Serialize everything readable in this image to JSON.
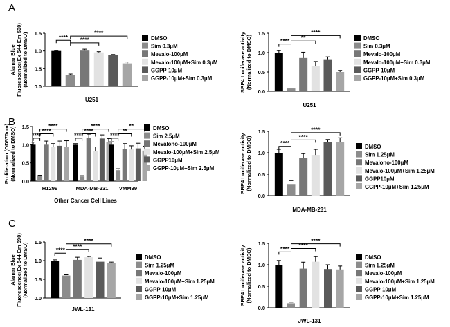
{
  "panel_labels": [
    "A",
    "B",
    "C"
  ],
  "group_colors": [
    "#000000",
    "#8c8c8c",
    "#777777",
    "#e2e2e2",
    "#5a5a5a",
    "#a6a6a6"
  ],
  "chart_data": [
    {
      "id": "A-left",
      "type": "bar",
      "ylabel": [
        "Alamar Blue",
        "Fluorescence(Ex 544 Em 590)",
        "(Normalized to DMSO)"
      ],
      "xlabel": "U251",
      "ylim": [
        0,
        1.5
      ],
      "yticks": [
        "0.0",
        "0.5",
        "1.0",
        "1.5"
      ],
      "legend": [
        "DMSO",
        "Sim 0.3μM",
        "Mevalo-100μM",
        "Mevalo-100μM+Sim 0.3μM",
        "GGPP-10μM",
        "GGPP-10μM+Sim 0.3μM"
      ],
      "groups": [
        {
          "label": "U251",
          "values": [
            1.0,
            0.33,
            1.01,
            0.96,
            0.89,
            0.65
          ],
          "errors": [
            0.01,
            0.02,
            0.04,
            0.02,
            0.01,
            0.04
          ]
        }
      ],
      "brackets": [
        {
          "from": 0,
          "to": 1,
          "label": "****",
          "y": 1.3
        },
        {
          "from": 1,
          "to": 3,
          "label": "****",
          "y": 1.23
        },
        {
          "from": 1,
          "to": 5,
          "label": "****",
          "y": 1.42
        }
      ]
    },
    {
      "id": "A-right",
      "type": "bar",
      "ylabel": [
        "SBE4 Luciferase activity",
        "(Normalized to DMSO)"
      ],
      "xlabel": "U251",
      "ylim": [
        0,
        1.5
      ],
      "yticks": [
        "0.0",
        "0.5",
        "1.0",
        "1.5"
      ],
      "legend": [
        "DMSO",
        "Sim 0.3μM",
        "Mevalo-100μM",
        "Mevalo-100μM+Sim 0.3μM",
        "GGPP-10μM",
        "GGPP-10μM+Sim 0.3μM"
      ],
      "groups": [
        {
          "label": "U251",
          "values": [
            1.0,
            0.07,
            0.86,
            0.65,
            0.81,
            0.5
          ],
          "errors": [
            0.05,
            0.01,
            0.15,
            0.12,
            0.08,
            0.04
          ]
        }
      ],
      "brackets": [
        {
          "from": 0,
          "to": 1,
          "label": "****",
          "y": 1.22
        },
        {
          "from": 1,
          "to": 3,
          "label": "**",
          "y": 1.3
        },
        {
          "from": 1,
          "to": 5,
          "label": "****",
          "y": 1.44
        }
      ]
    },
    {
      "id": "B-left",
      "type": "bar",
      "ylabel": [
        "Proliferation (OD570nm)",
        "(Normalized to DMSO)"
      ],
      "xlabel": "Other Cancer Cell Lines",
      "ylim": [
        0,
        1.5
      ],
      "yticks": [
        "0.0",
        "0.5",
        "1.0",
        "1.5"
      ],
      "legend": [
        "DMSO",
        "Sim 2.5μM",
        "Mevalono-100μM",
        "Mevalo-100μM+Sim 2.5μM",
        "GGPP10μM",
        "GGPP-10μM+Sim 2.5μM"
      ],
      "groups": [
        {
          "label": "H1299",
          "values": [
            1.0,
            0.14,
            1.0,
            0.93,
            0.97,
            0.93
          ],
          "errors": [
            0.07,
            0.02,
            0.1,
            0.1,
            0.13,
            0.18
          ]
        },
        {
          "label": "MDA-MB-231",
          "values": [
            1.0,
            0.13,
            1.19,
            0.82,
            1.17,
            1.07
          ],
          "errors": [
            0.03,
            0.02,
            0.1,
            0.12,
            0.1,
            0.1
          ]
        },
        {
          "label": "VMM39",
          "values": [
            1.0,
            0.3,
            0.88,
            0.87,
            0.9,
            0.84
          ],
          "errors": [
            0.08,
            0.04,
            0.15,
            0.1,
            0.14,
            0.12
          ]
        }
      ],
      "brackets": [
        {
          "group": 0,
          "from": 0,
          "to": 1,
          "label": "****",
          "y": 1.18
        },
        {
          "group": 0,
          "from": 1,
          "to": 3,
          "label": "****",
          "y": 1.3
        },
        {
          "group": 0,
          "from": 1,
          "to": 5,
          "label": "****",
          "y": 1.43
        },
        {
          "group": 1,
          "from": 0,
          "to": 1,
          "label": "****",
          "y": 1.18
        },
        {
          "group": 1,
          "from": 1,
          "to": 3,
          "label": "****",
          "y": 1.3
        },
        {
          "group": 1,
          "from": 1,
          "to": 5,
          "label": "****",
          "y": 1.43
        },
        {
          "group": 2,
          "from": 0,
          "to": 1,
          "label": "****",
          "y": 1.18
        },
        {
          "group": 2,
          "from": 1,
          "to": 3,
          "label": "**",
          "y": 1.3
        },
        {
          "group": 2,
          "from": 1,
          "to": 5,
          "label": "**",
          "y": 1.43
        }
      ]
    },
    {
      "id": "B-right",
      "type": "bar",
      "ylabel": [
        "SBE4 Luciferase activity",
        "(Normalized to DMSO)"
      ],
      "xlabel": "MDA-MB-231",
      "ylim": [
        0,
        1.5
      ],
      "yticks": [
        "0.0",
        "0.5",
        "1.0",
        "1.5"
      ],
      "legend": [
        "DMSO",
        "Sim 1.25μM",
        "Mevalono-100μM",
        "Mevalo-100μM+Sim 1.25μM",
        "GGPP10μM",
        "GGPP-10μM+Sim 1.25μM"
      ],
      "groups": [
        {
          "label": "MDA-MB-231",
          "values": [
            1.0,
            0.27,
            0.88,
            0.95,
            1.25,
            1.25
          ],
          "errors": [
            0.08,
            0.08,
            0.1,
            0.13,
            0.06,
            0.1
          ]
        }
      ],
      "brackets": [
        {
          "from": 0,
          "to": 1,
          "label": "****",
          "y": 1.15
        },
        {
          "from": 1,
          "to": 3,
          "label": "****",
          "y": 1.3
        },
        {
          "from": 1,
          "to": 5,
          "label": "****",
          "y": 1.47
        }
      ]
    },
    {
      "id": "C-left",
      "type": "bar",
      "ylabel": [
        "Alamar Blue",
        "Fluorescence(Ex 544 Em 590)",
        "(Normalized to DMSO)"
      ],
      "xlabel": "JWL-131",
      "ylim": [
        0,
        1.5
      ],
      "yticks": [
        "0.0",
        "0.5",
        "1.0",
        "1.5"
      ],
      "legend": [
        "DMSO",
        "Sim 1.25μM",
        "Mevalo-100μM",
        "Mevalo-100μM+Sim 1.25μM",
        "GGPP-10μM",
        "GGPP-10μM+Sim 1.25μM"
      ],
      "groups": [
        {
          "label": "JWL-131",
          "values": [
            1.0,
            0.6,
            1.02,
            1.09,
            0.97,
            0.93
          ],
          "errors": [
            0.02,
            0.02,
            0.07,
            0.02,
            0.1,
            0.03
          ]
        }
      ],
      "brackets": [
        {
          "from": 0,
          "to": 1,
          "label": "****",
          "y": 1.2
        },
        {
          "from": 1,
          "to": 3,
          "label": "****",
          "y": 1.3
        },
        {
          "from": 1,
          "to": 5,
          "label": "****",
          "y": 1.45
        }
      ]
    },
    {
      "id": "C-right",
      "type": "bar",
      "ylabel": [
        "SBE4 Luciferase activity",
        "(Normalized to DMSO)"
      ],
      "xlabel": "JWL-131",
      "ylim": [
        0,
        1.5
      ],
      "yticks": [
        "0.0",
        "0.5",
        "1.0",
        "1.5"
      ],
      "legend": [
        "DMSO",
        "Sim 1.25μM",
        "Mevalo-100μM",
        "Mevalo-100μM+Sim 1.25μM",
        "GGPP-10μM",
        "GGPP-10μM+Sim 1.25μM"
      ],
      "groups": [
        {
          "label": "JWL-131",
          "values": [
            1.0,
            0.09,
            0.91,
            1.07,
            0.9,
            0.89
          ],
          "errors": [
            0.1,
            0.02,
            0.15,
            0.12,
            0.1,
            0.08
          ]
        }
      ],
      "brackets": [
        {
          "from": 0,
          "to": 1,
          "label": "****",
          "y": 1.3
        },
        {
          "from": 1,
          "to": 3,
          "label": "****",
          "y": 1.38
        },
        {
          "from": 1,
          "to": 5,
          "label": "****",
          "y": 1.49
        }
      ]
    }
  ]
}
